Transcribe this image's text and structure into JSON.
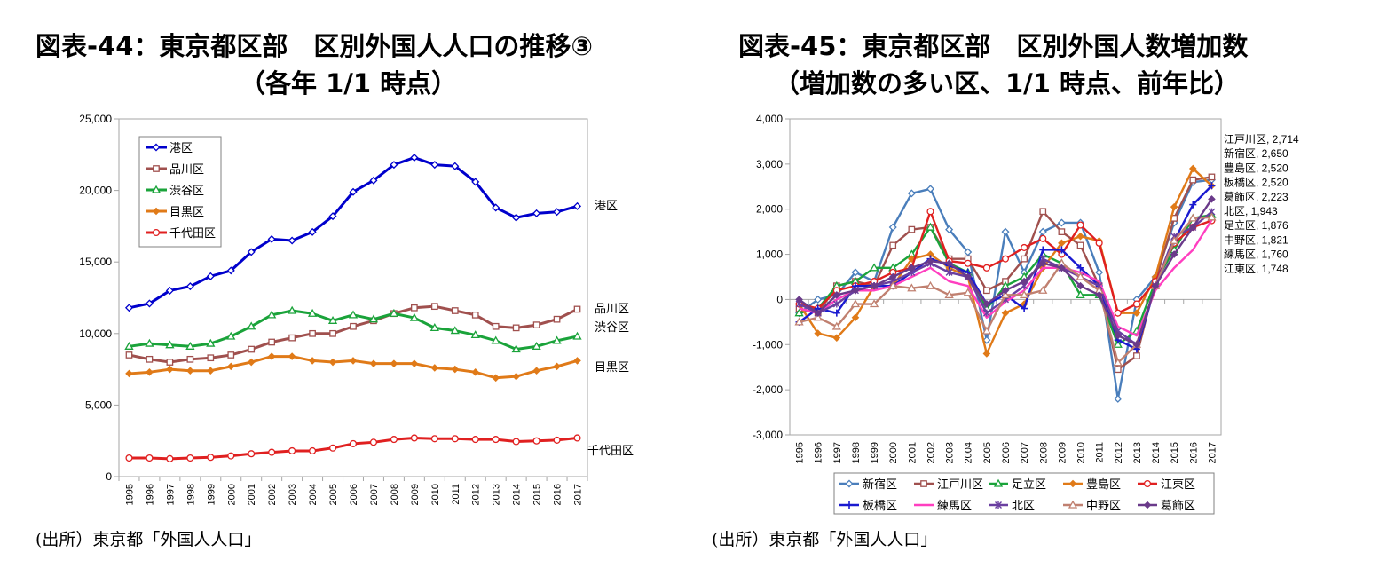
{
  "charts": {
    "left": {
      "title1": "図表-44：東京都区部　区別外国人人口の推移③",
      "title2": "（各年 1/1 時点）",
      "source": "(出所）東京都「外国人人口」"
    },
    "right": {
      "title1": "図表-45：東京都区部　区別外国人数増加数",
      "title2": "（増加数の多い区、1/1 時点、前年比）",
      "source": "(出所）東京都「外国人人口」"
    }
  },
  "chart_data": [
    {
      "type": "line",
      "x": [
        "1995",
        "1996",
        "1997",
        "1998",
        "1999",
        "2000",
        "2001",
        "2002",
        "2003",
        "2004",
        "2005",
        "2006",
        "2007",
        "2008",
        "2009",
        "2010",
        "2011",
        "2012",
        "2013",
        "2014",
        "2015",
        "2016",
        "2017"
      ],
      "ylim": [
        0,
        25000
      ],
      "yticks": [
        "0",
        "5,000",
        "10,000",
        "15,000",
        "20,000",
        "25,000"
      ],
      "legend_position": "top-left",
      "series": [
        {
          "name": "港区",
          "end_label": "港区",
          "color": "#0000CC",
          "marker": "diamond",
          "values": [
            11800,
            12100,
            13000,
            13300,
            14000,
            14400,
            15700,
            16600,
            16500,
            17100,
            18200,
            19900,
            20700,
            21800,
            22300,
            21800,
            21700,
            20600,
            18800,
            18100,
            18400,
            18500,
            18900
          ]
        },
        {
          "name": "品川区",
          "end_label": "品川区",
          "color": "#A0504E",
          "marker": "square",
          "values": [
            8500,
            8200,
            8000,
            8200,
            8300,
            8500,
            8900,
            9400,
            9700,
            10000,
            10000,
            10500,
            10900,
            11400,
            11800,
            11900,
            11600,
            11300,
            10500,
            10400,
            10600,
            11000,
            11700
          ]
        },
        {
          "name": "渋谷区",
          "end_label": "渋谷区",
          "color": "#1AA33A",
          "marker": "triangle",
          "values": [
            9100,
            9300,
            9200,
            9100,
            9300,
            9800,
            10500,
            11300,
            11600,
            11400,
            10900,
            11300,
            11000,
            11400,
            11100,
            10400,
            10200,
            9900,
            9500,
            8900,
            9100,
            9500,
            9800
          ]
        },
        {
          "name": "目黒区",
          "end_label": "目黒区",
          "color": "#E07A18",
          "marker": "diamond-filled",
          "values": [
            7200,
            7300,
            7500,
            7400,
            7400,
            7700,
            8000,
            8400,
            8400,
            8100,
            8000,
            8100,
            7900,
            7900,
            7900,
            7600,
            7500,
            7300,
            6900,
            7000,
            7400,
            7700,
            8100
          ]
        },
        {
          "name": "千代田区",
          "end_label": "千代田区",
          "color": "#E02020",
          "marker": "circle",
          "values": [
            1300,
            1300,
            1250,
            1300,
            1350,
            1450,
            1600,
            1700,
            1800,
            1800,
            2000,
            2300,
            2400,
            2600,
            2700,
            2650,
            2650,
            2600,
            2600,
            2450,
            2500,
            2550,
            2700
          ]
        }
      ]
    },
    {
      "type": "line",
      "x": [
        "1995",
        "1996",
        "1997",
        "1998",
        "1999",
        "2000",
        "2001",
        "2002",
        "2003",
        "2004",
        "2005",
        "2006",
        "2007",
        "2008",
        "2009",
        "2010",
        "2011",
        "2012",
        "2013",
        "2014",
        "2015",
        "2016",
        "2017"
      ],
      "ylim": [
        -3000,
        4000
      ],
      "yticks": [
        "-3,000",
        "-2,000",
        "-1,000",
        "0",
        "1,000",
        "2,000",
        "3,000",
        "4,000"
      ],
      "legend_position": "bottom",
      "end_annotations": [
        "江戸川区, 2,714",
        "新宿区, 2,650",
        "豊島区, 2,520",
        "板橋区, 2,520",
        "葛飾区, 2,223",
        "北区, 1,943",
        "足立区, 1,876",
        "中野区, 1,821",
        "練馬区, 1,760",
        "江東区, 1,748"
      ],
      "series": [
        {
          "name": "新宿区",
          "color": "#4A7EBB",
          "marker": "diamond",
          "values": [
            -300,
            0,
            100,
            600,
            400,
            1600,
            2350,
            2450,
            1550,
            1050,
            -900,
            1500,
            600,
            1500,
            1700,
            1700,
            600,
            -2200,
            0,
            500,
            1700,
            2600,
            2650
          ]
        },
        {
          "name": "江戸川区",
          "color": "#A0504E",
          "marker": "square",
          "values": [
            -200,
            -300,
            300,
            400,
            300,
            1200,
            1550,
            1600,
            900,
            900,
            200,
            400,
            900,
            1950,
            1500,
            1200,
            300,
            -1550,
            -1250,
            400,
            1800,
            2650,
            2714
          ]
        },
        {
          "name": "足立区",
          "color": "#1AA33A",
          "marker": "triangle",
          "values": [
            -300,
            -200,
            300,
            400,
            700,
            700,
            1000,
            1600,
            800,
            600,
            -200,
            300,
            500,
            1000,
            800,
            100,
            100,
            -1000,
            -700,
            400,
            1100,
            1800,
            1876
          ]
        },
        {
          "name": "豊島区",
          "color": "#E07A18",
          "marker": "diamond-filled",
          "values": [
            -100,
            -750,
            -850,
            -400,
            300,
            300,
            900,
            1000,
            700,
            500,
            -1200,
            -300,
            -100,
            700,
            1250,
            1400,
            1300,
            -300,
            -300,
            500,
            2050,
            2900,
            2520
          ]
        },
        {
          "name": "江東区",
          "color": "#E02020",
          "marker": "circle",
          "values": [
            -100,
            -200,
            200,
            300,
            400,
            600,
            700,
            1950,
            850,
            800,
            700,
            900,
            1150,
            1350,
            1000,
            1650,
            1250,
            -300,
            -100,
            400,
            1250,
            1600,
            1748
          ]
        },
        {
          "name": "板橋区",
          "color": "#1A1AD0",
          "marker": "cross",
          "values": [
            -500,
            -200,
            -300,
            300,
            300,
            300,
            600,
            900,
            750,
            600,
            -100,
            100,
            -200,
            1100,
            1100,
            700,
            300,
            -900,
            -1100,
            300,
            1300,
            2100,
            2520
          ]
        },
        {
          "name": "練馬区",
          "color": "#FF3FC0",
          "marker": "none",
          "values": [
            -200,
            -300,
            0,
            200,
            200,
            300,
            500,
            700,
            400,
            300,
            -400,
            -50,
            200,
            700,
            700,
            600,
            400,
            -600,
            -800,
            200,
            700,
            1100,
            1760
          ]
        },
        {
          "name": "北区",
          "color": "#6A3FA0",
          "marker": "star",
          "values": [
            -100,
            -300,
            -100,
            200,
            300,
            400,
            600,
            800,
            600,
            500,
            -300,
            0,
            300,
            900,
            700,
            500,
            300,
            -700,
            -1000,
            300,
            1400,
            1600,
            1943
          ]
        },
        {
          "name": "中野区",
          "color": "#C08070",
          "marker": "triangle",
          "values": [
            -500,
            -400,
            -600,
            -100,
            -100,
            300,
            250,
            300,
            100,
            150,
            -700,
            100,
            100,
            200,
            800,
            500,
            200,
            -1400,
            -1000,
            300,
            1300,
            1800,
            1821
          ]
        },
        {
          "name": "葛飾区",
          "color": "#6A3A8A",
          "marker": "diamond-filled",
          "values": [
            0,
            -300,
            100,
            200,
            300,
            500,
            700,
            850,
            800,
            500,
            -100,
            200,
            400,
            800,
            700,
            300,
            100,
            -800,
            -1000,
            300,
            1000,
            1600,
            2223
          ]
        }
      ]
    }
  ]
}
